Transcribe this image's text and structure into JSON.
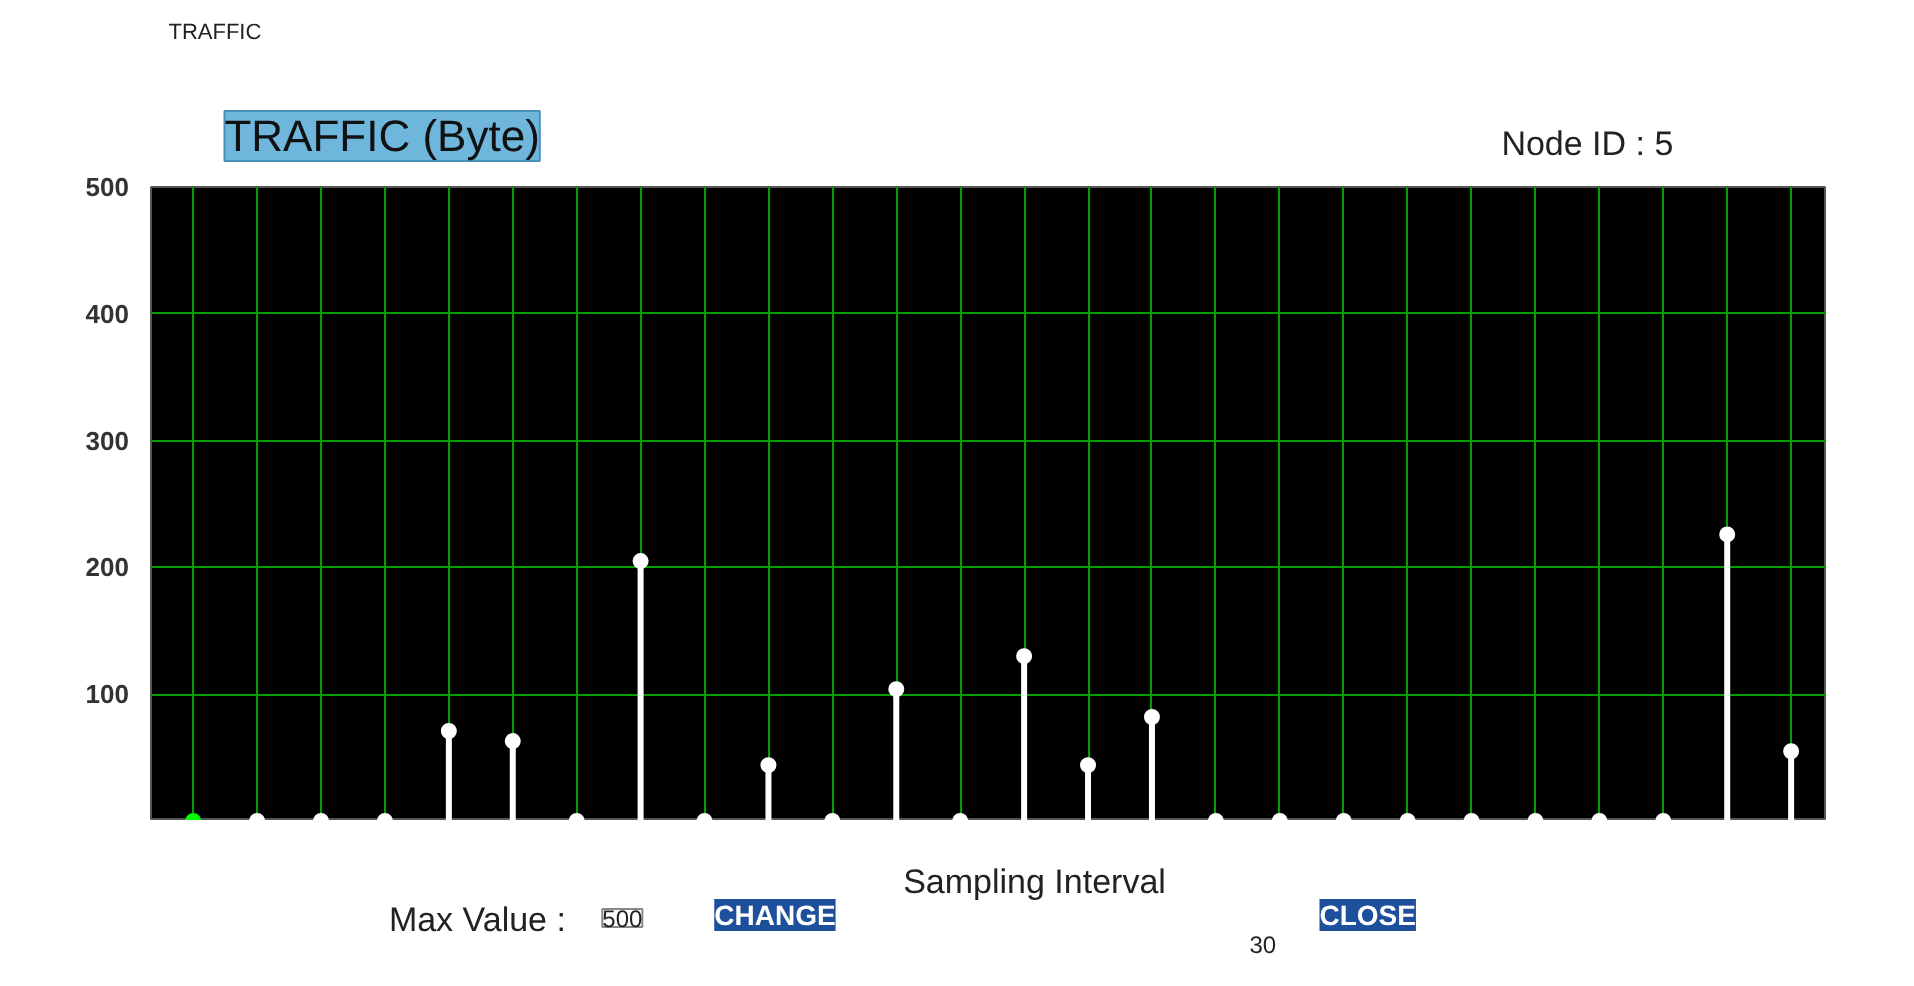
{
  "chart_data": {
    "type": "lollipop",
    "title": "TRAFFIC (Byte)",
    "categories": [
      null,
      null,
      null,
      null,
      null,
      null,
      null,
      null,
      null,
      null,
      null,
      null,
      null,
      null,
      null,
      null,
      null,
      null,
      null,
      null,
      null,
      null,
      null,
      null,
      null,
      null
    ],
    "values": [
      0,
      0,
      0,
      0,
      71,
      63,
      0,
      205,
      0,
      44,
      0,
      104,
      0,
      130,
      44,
      82,
      0,
      0,
      0,
      0,
      0,
      0,
      0,
      0,
      226,
      55
    ],
    "colors": [
      "#00ff00",
      "#ffffff",
      "#ffffff",
      "#ffffff",
      "#ffffff",
      "#ffffff",
      "#ffffff",
      "#ffffff",
      "#ffffff",
      "#ffffff",
      "#ffffff",
      "#ffffff",
      "#ffffff",
      "#ffffff",
      "#ffffff",
      "#ffffff",
      "#ffffff",
      "#ffffff",
      "#ffffff",
      "#ffffff",
      "#ffffff",
      "#ffffff",
      "#ffffff",
      "#ffffff",
      "#ffffff",
      "#ffffff"
    ],
    "ylim": [
      0,
      500
    ],
    "yticks": [
      100,
      200,
      300,
      400,
      500
    ],
    "grid": true,
    "marker": "circle",
    "tick_labels": "y",
    "annotations": [
      "TRAFFIC",
      "Node ID : 5",
      "Max Value :",
      "500",
      "CHANGE",
      "Sampling Interval",
      "30",
      "CLOSE"
    ]
  }
}
